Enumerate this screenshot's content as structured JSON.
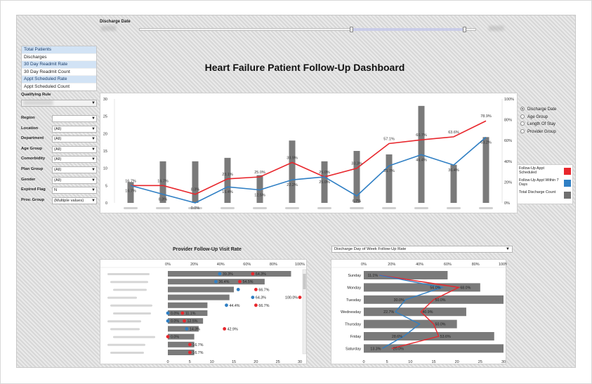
{
  "slider": {
    "label": "Discharge Date"
  },
  "dashboard_title": "Heart Failure Patient Follow-Up Dashboard",
  "measures": [
    {
      "label": "Total Patients",
      "highlight": true
    },
    {
      "label": "Discharges",
      "highlight": false
    },
    {
      "label": "30 Day Readmit Rate",
      "highlight": true
    },
    {
      "label": "30 Day Readmit Count",
      "highlight": false
    },
    {
      "label": "Appt Scheduled Rate",
      "highlight": true
    },
    {
      "label": "Appt Scheduled Count",
      "highlight": false
    }
  ],
  "filters": {
    "qualifying_rule_label": "Qualifying Rule",
    "items": [
      {
        "label": "Region",
        "value": ""
      },
      {
        "label": "Location",
        "value": "(All)"
      },
      {
        "label": "Department",
        "value": "(All)"
      },
      {
        "label": "Age Group",
        "value": "(All)"
      },
      {
        "label": "Comorbidity",
        "value": "(All)"
      },
      {
        "label": "Plan Group",
        "value": "(All)"
      },
      {
        "label": "Gender",
        "value": "(All)"
      },
      {
        "label": "Expired Flag",
        "value": "N"
      },
      {
        "label": "Prov. Group",
        "value": "(Multiple values)"
      }
    ]
  },
  "radio_options": [
    {
      "label": "Discharge Date",
      "selected": true
    },
    {
      "label": "Age Group",
      "selected": false
    },
    {
      "label": "Length Of Stay",
      "selected": false
    },
    {
      "label": "Provider Group",
      "selected": false
    }
  ],
  "legend": [
    {
      "label": "Follow-Up Appt Scheduled",
      "color": "#e8262c"
    },
    {
      "label": "Follow-Up Appt Within 7 Days",
      "color": "#2f7fc4"
    },
    {
      "label": "Total Discharge Count",
      "color": "#707070"
    }
  ],
  "colors": {
    "red": "#e8262c",
    "blue": "#2f7fc4",
    "bar": "#7a7a7a"
  },
  "provider_title": "Provider Follow-Up Visit Rate",
  "dow_dropdown_label": "Discharge Day of Week Follow-Up Rate",
  "chart_data": [
    {
      "type": "bar",
      "title": "Heart Failure Patient Follow-Up Dashboard",
      "left_axis_ticks": [
        "0",
        "5",
        "10",
        "15",
        "20",
        "25",
        "30"
      ],
      "right_axis_ticks": [
        "0%",
        "20%",
        "40%",
        "60%",
        "80%",
        "100%"
      ],
      "ylim": [
        0,
        30
      ],
      "y2lim": [
        0,
        100
      ],
      "counts": [
        6,
        12,
        12,
        13,
        8,
        18,
        12,
        15,
        14,
        28,
        11,
        19
      ],
      "series": [
        {
          "name": "Follow-Up Appt Scheduled",
          "values": [
            16.7,
            16.7,
            8.3,
            23.1,
            25,
            38.9,
            25,
            33.3,
            57.1,
            60.7,
            63.6,
            78.9
          ],
          "labels": [
            "16.7%",
            "16.7%",
            "8.3%",
            "23.1%",
            "25.0%",
            "38.9%",
            "25.0%",
            "33.3%",
            "57.1%",
            "60.7%",
            "63.6%",
            "78.9%"
          ]
        },
        {
          "name": "Follow-Up Appt Within 7 Days",
          "values": [
            16.7,
            8.3,
            0,
            15.4,
            12.5,
            22.2,
            25,
            6.7,
            35.7,
            46.4,
            36.4,
            63.2
          ],
          "labels": [
            "16.7%",
            "8.3%",
            "0.0%",
            "15.4%",
            "12.5%",
            "22.2%",
            "25.0%",
            "6.7%",
            "35.7%",
            "46.4%",
            "36.4%",
            "63.2%"
          ]
        }
      ]
    },
    {
      "type": "bar",
      "title": "Provider Follow-Up Visit Rate",
      "pct_ticks": [
        "0%",
        "20%",
        "40%",
        "60%",
        "80%",
        "100%"
      ],
      "count_ticks": [
        "0",
        "5",
        "10",
        "15",
        "20",
        "25",
        "30"
      ],
      "xlim": [
        0,
        30
      ],
      "rows": [
        {
          "count": 28,
          "blue": 39.3,
          "red": 64.3,
          "blue_label": "39.3%",
          "red_label": "64.3%"
        },
        {
          "count": 22,
          "blue": 36.4,
          "red": 54.5,
          "blue_label": "36.4%",
          "red_label": "54.5%"
        },
        {
          "count": 15,
          "blue": 53.3,
          "red": 66.7,
          "blue_label": "",
          "red_label": "66.7%"
        },
        {
          "count": 14,
          "blue": 64.3,
          "red": 100,
          "blue_label": "64.3%",
          "red_label": "100.0%"
        },
        {
          "count": 9,
          "blue": 44.4,
          "red": 66.7,
          "blue_label": "44.4%",
          "red_label": "66.7%"
        },
        {
          "count": 9,
          "blue": 0,
          "red": 11.1,
          "blue_label": "0.0%",
          "red_label": "11.1%"
        },
        {
          "count": 8,
          "blue": 0,
          "red": 12.5,
          "blue_label": "0.0%",
          "red_label": "12.5%"
        },
        {
          "count": 7,
          "blue": 14.3,
          "red": 42.9,
          "blue_label": "14.3%",
          "red_label": "42.9%"
        },
        {
          "count": 6,
          "blue": null,
          "red": 0,
          "blue_label": "",
          "red_label": "0.0%"
        },
        {
          "count": 6,
          "blue": null,
          "red": 16.7,
          "blue_label": "",
          "red_label": "16.7%"
        },
        {
          "count": 6,
          "blue": null,
          "red": 16.7,
          "blue_label": "",
          "red_label": "16.7%"
        }
      ]
    },
    {
      "type": "bar",
      "title": "Discharge Day of Week Follow-Up Rate",
      "pct_ticks": [
        "0%",
        "20%",
        "40%",
        "60%",
        "80%",
        "100%"
      ],
      "count_ticks": [
        "0",
        "5",
        "10",
        "15",
        "20",
        "25",
        "30"
      ],
      "xlim": [
        0,
        30
      ],
      "days": [
        {
          "day": "Sunday",
          "count": 18,
          "red": 11.1,
          "blue": 11.1,
          "red_label": "",
          "blue_label": "11.1%"
        },
        {
          "day": "Monday",
          "count": 25,
          "red": 68,
          "blue": 56,
          "red_label": "68.0%",
          "blue_label": "56.0%"
        },
        {
          "day": "Tuesday",
          "count": 30,
          "red": 50,
          "blue": 30,
          "red_label": "50.0%",
          "blue_label": "30.0%"
        },
        {
          "day": "Wednesday",
          "count": 22,
          "red": 40.9,
          "blue": 22.7,
          "red_label": "40.9%",
          "blue_label": "22.7%"
        },
        {
          "day": "Thursday",
          "count": 20,
          "red": 50,
          "blue": 40,
          "red_label": "50.0%",
          "blue_label": ""
        },
        {
          "day": "Friday",
          "count": 28,
          "red": 53.6,
          "blue": 28.6,
          "red_label": "53.6%",
          "blue_label": "28.6%"
        },
        {
          "day": "Saturday",
          "count": 30,
          "red": 20,
          "blue": 13.3,
          "red_label": "20.0%",
          "blue_label": "13.3%"
        }
      ]
    }
  ]
}
